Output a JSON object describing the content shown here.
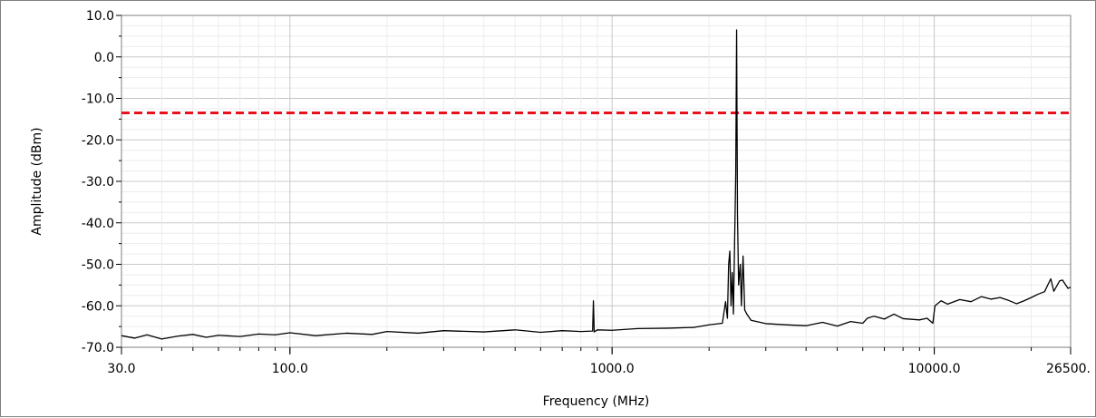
{
  "chart_data": {
    "type": "line",
    "title": "",
    "xlabel": "Frequency (MHz)",
    "ylabel": "Amplitude (dBm)",
    "x_scale": "log",
    "xlim": [
      30.0,
      26500.0
    ],
    "ylim": [
      -70.0,
      10.0
    ],
    "x_tick_labels": [
      {
        "value": 30.0,
        "label": "30.0"
      },
      {
        "value": 100.0,
        "label": "100.0"
      },
      {
        "value": 1000.0,
        "label": "1000.0"
      },
      {
        "value": 10000.0,
        "label": "10000.0"
      },
      {
        "value": 26500.0,
        "label": "26500."
      }
    ],
    "y_tick_labels": [
      {
        "value": 10.0,
        "label": "10.0"
      },
      {
        "value": 0.0,
        "label": "0.0"
      },
      {
        "value": -10.0,
        "label": "-10.0"
      },
      {
        "value": -20.0,
        "label": "-20.0"
      },
      {
        "value": -30.0,
        "label": "-30.0"
      },
      {
        "value": -40.0,
        "label": "-40.0"
      },
      {
        "value": -50.0,
        "label": "-50.0"
      },
      {
        "value": -60.0,
        "label": "-60.0"
      },
      {
        "value": -70.0,
        "label": "-70.0"
      }
    ],
    "grid": true,
    "limit_line": {
      "y": -13.5,
      "color": "#e8101c",
      "style": "dashed"
    },
    "series": [
      {
        "color": "#000000",
        "points": [
          [
            30,
            -67.2
          ],
          [
            33,
            -67.8
          ],
          [
            36,
            -67.0
          ],
          [
            40,
            -68.0
          ],
          [
            45,
            -67.3
          ],
          [
            50,
            -66.9
          ],
          [
            55,
            -67.6
          ],
          [
            60,
            -67.1
          ],
          [
            70,
            -67.4
          ],
          [
            80,
            -66.8
          ],
          [
            90,
            -67.0
          ],
          [
            100,
            -66.5
          ],
          [
            120,
            -67.2
          ],
          [
            150,
            -66.6
          ],
          [
            180,
            -66.9
          ],
          [
            200,
            -66.2
          ],
          [
            250,
            -66.6
          ],
          [
            300,
            -66.0
          ],
          [
            400,
            -66.3
          ],
          [
            500,
            -65.8
          ],
          [
            600,
            -66.4
          ],
          [
            700,
            -66.0
          ],
          [
            800,
            -66.2
          ],
          [
            870,
            -66.1
          ],
          [
            875,
            -58.8
          ],
          [
            880,
            -66.3
          ],
          [
            900,
            -65.8
          ],
          [
            1000,
            -65.9
          ],
          [
            1200,
            -65.5
          ],
          [
            1500,
            -65.4
          ],
          [
            1800,
            -65.2
          ],
          [
            2000,
            -64.6
          ],
          [
            2200,
            -64.2
          ],
          [
            2250,
            -59.0
          ],
          [
            2280,
            -63.0
          ],
          [
            2300,
            -50.0
          ],
          [
            2320,
            -46.8
          ],
          [
            2340,
            -60.0
          ],
          [
            2360,
            -52.0
          ],
          [
            2380,
            -62.0
          ],
          [
            2400,
            -45.0
          ],
          [
            2420,
            -28.2
          ],
          [
            2435,
            6.5
          ],
          [
            2450,
            -38.0
          ],
          [
            2470,
            -55.0
          ],
          [
            2500,
            -50.0
          ],
          [
            2520,
            -60.0
          ],
          [
            2550,
            -48.0
          ],
          [
            2580,
            -61.0
          ],
          [
            2620,
            -62.0
          ],
          [
            2700,
            -63.5
          ],
          [
            3000,
            -64.3
          ],
          [
            3500,
            -64.6
          ],
          [
            4000,
            -64.8
          ],
          [
            4500,
            -64.0
          ],
          [
            5000,
            -64.9
          ],
          [
            5500,
            -63.8
          ],
          [
            6000,
            -64.2
          ],
          [
            6200,
            -63.0
          ],
          [
            6500,
            -62.5
          ],
          [
            7000,
            -63.2
          ],
          [
            7500,
            -62.0
          ],
          [
            8000,
            -63.1
          ],
          [
            9000,
            -63.4
          ],
          [
            9500,
            -63.0
          ],
          [
            9900,
            -64.2
          ],
          [
            10050,
            -60.0
          ],
          [
            10500,
            -58.8
          ],
          [
            11000,
            -59.6
          ],
          [
            12000,
            -58.5
          ],
          [
            13000,
            -59.0
          ],
          [
            14000,
            -57.8
          ],
          [
            15000,
            -58.4
          ],
          [
            16000,
            -58.0
          ],
          [
            17000,
            -58.7
          ],
          [
            18000,
            -59.5
          ],
          [
            19000,
            -58.8
          ],
          [
            20000,
            -58.0
          ],
          [
            21000,
            -57.2
          ],
          [
            22000,
            -56.6
          ],
          [
            22500,
            -55.0
          ],
          [
            23000,
            -53.5
          ],
          [
            23500,
            -56.5
          ],
          [
            24500,
            -54.0
          ],
          [
            25000,
            -53.8
          ],
          [
            26000,
            -55.8
          ],
          [
            26500,
            -55.5
          ]
        ]
      }
    ]
  }
}
